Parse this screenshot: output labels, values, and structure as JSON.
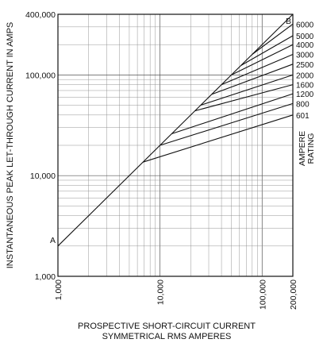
{
  "chart_data": {
    "type": "line",
    "xlabel": "PROSPECTIVE SHORT-CIRCUIT CURRENT",
    "xlabel_line2": "SYMMETRICAL RMS AMPERES",
    "ylabel": "INSTANTANEOUS PEAK LET-THROUGH CURRENT IN AMPS",
    "x_scale": "log",
    "y_scale": "log",
    "xlim": [
      1000,
      200000
    ],
    "ylim": [
      1000,
      400000
    ],
    "x_ticks": [
      {
        "value": 1000,
        "label": "1,000"
      },
      {
        "value": 10000,
        "label": "10,000"
      },
      {
        "value": 100000,
        "label": "100,000"
      },
      {
        "value": 200000,
        "label": "200,000"
      }
    ],
    "y_ticks": [
      {
        "value": 1000,
        "label": "1,000"
      },
      {
        "value": 10000,
        "label": "10,000"
      },
      {
        "value": 100000,
        "label": "100,000"
      },
      {
        "value": 400000,
        "label": "400,000"
      }
    ],
    "grid": true,
    "reference_line": {
      "label_start": "A",
      "label_end": "B",
      "points": [
        [
          1000,
          2000
        ],
        [
          200000,
          400000
        ]
      ]
    },
    "rating_title": "AMPERE RATING",
    "series": [
      {
        "name": "6000",
        "points": [
          [
            80000,
            160000
          ],
          [
            200000,
            320000
          ]
        ]
      },
      {
        "name": "5000",
        "points": [
          [
            62000,
            124000
          ],
          [
            200000,
            245000
          ]
        ]
      },
      {
        "name": "4000",
        "points": [
          [
            50000,
            100000
          ],
          [
            200000,
            200000
          ]
        ]
      },
      {
        "name": "3000",
        "points": [
          [
            40000,
            80000
          ],
          [
            200000,
            160000
          ]
        ]
      },
      {
        "name": "2500",
        "points": [
          [
            32000,
            64000
          ],
          [
            200000,
            128000
          ]
        ]
      },
      {
        "name": "2000",
        "points": [
          [
            25000,
            50000
          ],
          [
            200000,
            100000
          ]
        ]
      },
      {
        "name": "1600",
        "points": [
          [
            22000,
            44000
          ],
          [
            200000,
            80000
          ]
        ]
      },
      {
        "name": "1200",
        "points": [
          [
            13000,
            26000
          ],
          [
            200000,
            65000
          ]
        ]
      },
      {
        "name": "800",
        "points": [
          [
            10000,
            20000
          ],
          [
            200000,
            52000
          ]
        ]
      },
      {
        "name": "601",
        "points": [
          [
            6800,
            13600
          ],
          [
            200000,
            40000
          ]
        ]
      }
    ]
  }
}
